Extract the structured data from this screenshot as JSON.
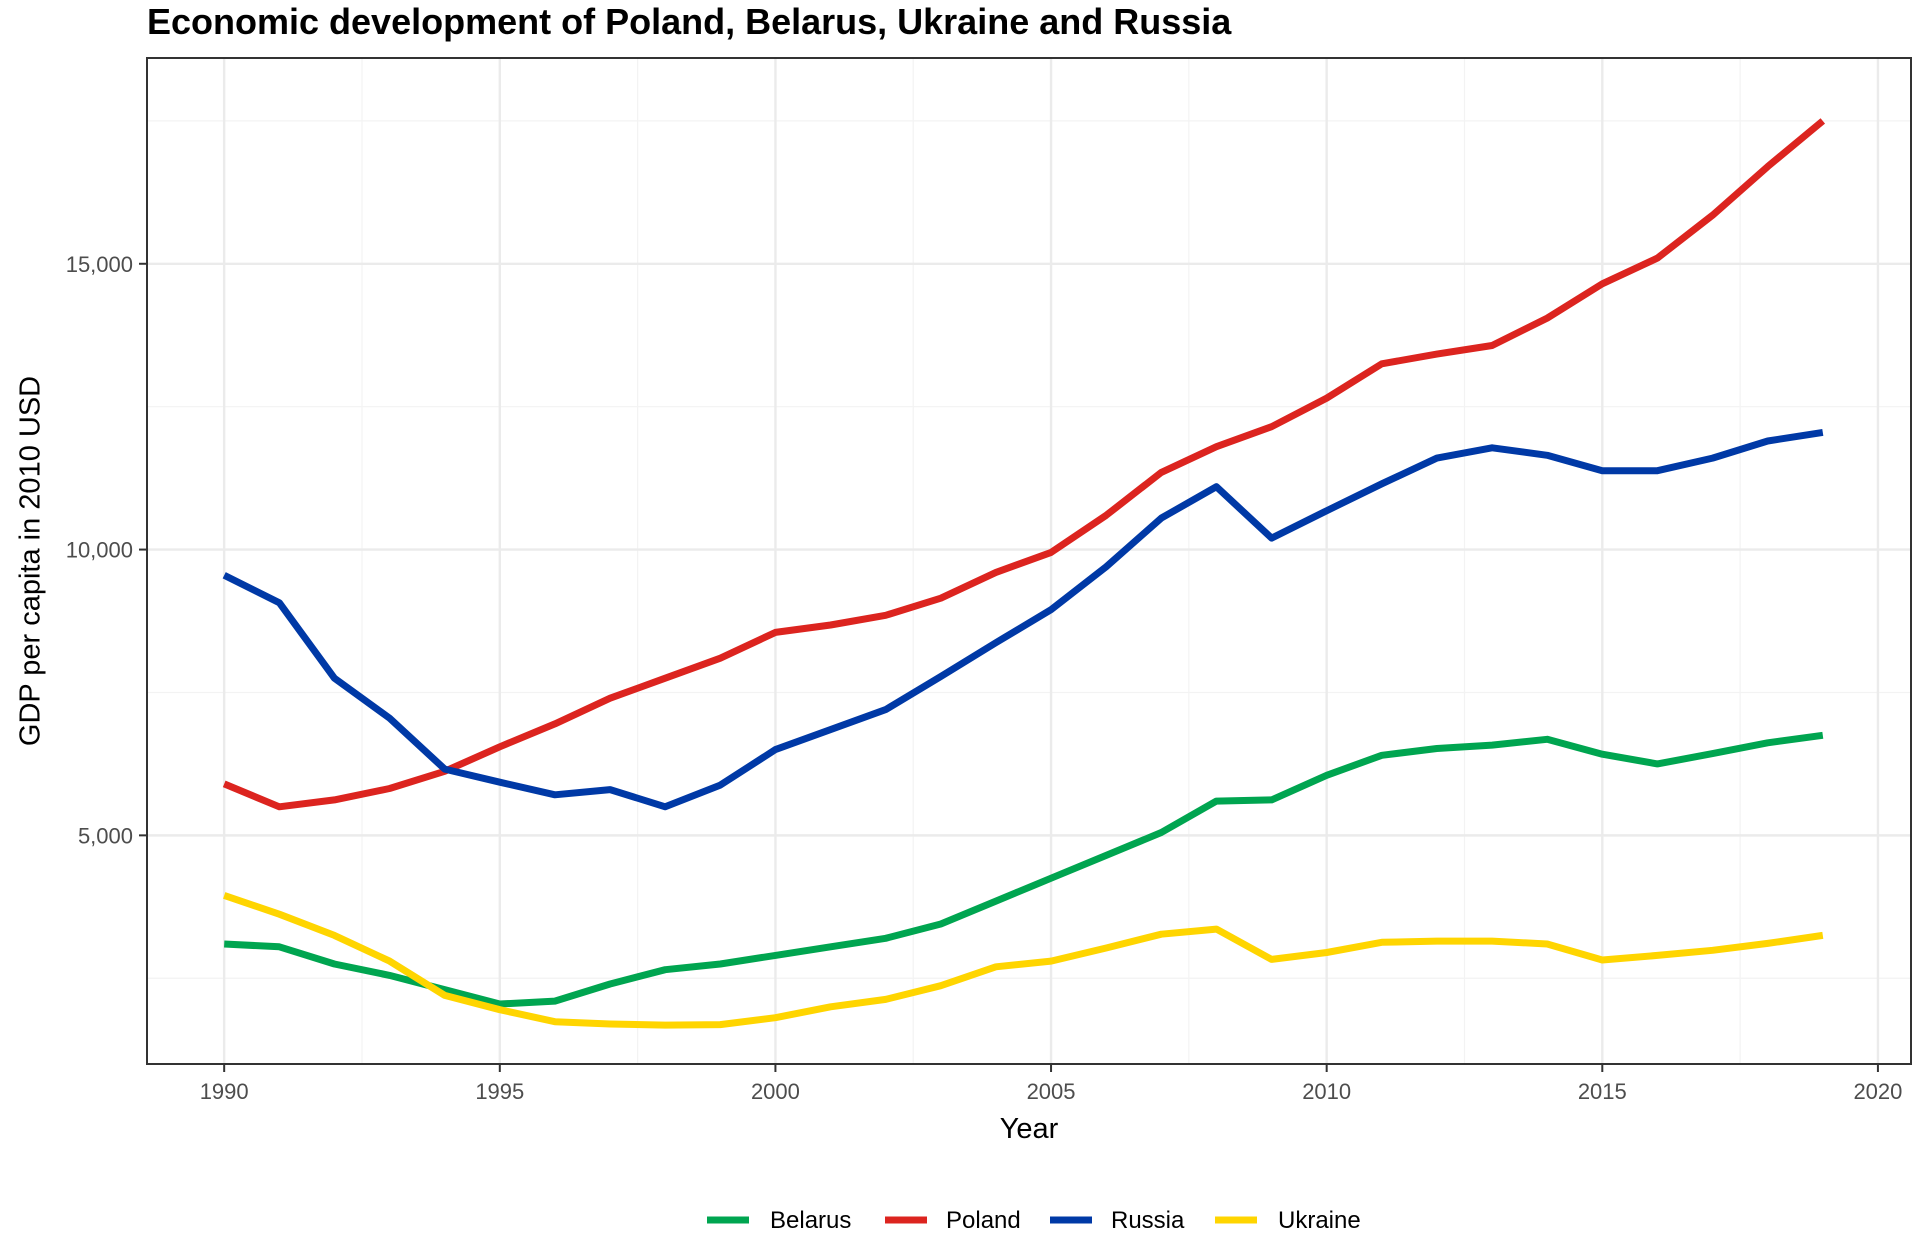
{
  "chart_data": {
    "type": "line",
    "title": "Economic development of Poland, Belarus, Ukraine and Russia",
    "xlabel": "Year",
    "ylabel": "GDP per capita in 2010 USD",
    "xlim": [
      1988.6,
      2020.6
    ],
    "ylim": [
      1000,
      18600
    ],
    "x_ticks": [
      1990,
      1995,
      2000,
      2005,
      2010,
      2015,
      2020
    ],
    "y_ticks": [
      5000,
      10000,
      15000
    ],
    "x_tick_labels": [
      "1990",
      "1995",
      "2000",
      "2005",
      "2010",
      "2015",
      "2020"
    ],
    "y_tick_labels": [
      "5,000",
      "10,000",
      "15,000"
    ],
    "grid": true,
    "legend_position": "bottom",
    "x": [
      1990,
      1991,
      1992,
      1993,
      1994,
      1995,
      1996,
      1997,
      1998,
      1999,
      2000,
      2001,
      2002,
      2003,
      2004,
      2005,
      2006,
      2007,
      2008,
      2009,
      2010,
      2011,
      2012,
      2013,
      2014,
      2015,
      2016,
      2017,
      2018,
      2019
    ],
    "series": [
      {
        "name": "Belarus",
        "color": "#00a550",
        "values": [
          3100,
          3050,
          2750,
          2550,
          2300,
          2050,
          2100,
          2400,
          2650,
          2750,
          2900,
          3050,
          3200,
          3450,
          3850,
          4250,
          4650,
          5050,
          5600,
          5620,
          6050,
          6400,
          6520,
          6580,
          6680,
          6420,
          6250,
          6430,
          6620,
          6750
        ]
      },
      {
        "name": "Poland",
        "color": "#dc241f",
        "values": [
          5900,
          5500,
          5620,
          5820,
          6120,
          6550,
          6950,
          7400,
          7750,
          8100,
          8550,
          8680,
          8850,
          9150,
          9600,
          9950,
          10600,
          11350,
          11800,
          12150,
          12650,
          13250,
          13420,
          13570,
          14050,
          14650,
          15100,
          15850,
          16700,
          17500
        ]
      },
      {
        "name": "Russia",
        "color": "#0039a6",
        "values": [
          9550,
          9070,
          7750,
          7050,
          6160,
          5930,
          5710,
          5800,
          5500,
          5880,
          6500,
          6850,
          7200,
          7780,
          8370,
          8950,
          9700,
          10550,
          11100,
          10200,
          10680,
          11150,
          11600,
          11780,
          11650,
          11380,
          11380,
          11600,
          11900,
          12050
        ]
      },
      {
        "name": "Ukraine",
        "color": "#ffd500",
        "values": [
          3950,
          3620,
          3250,
          2800,
          2200,
          1950,
          1740,
          1700,
          1680,
          1690,
          1810,
          2000,
          2130,
          2370,
          2700,
          2800,
          3030,
          3270,
          3360,
          2830,
          2950,
          3130,
          3150,
          3150,
          3100,
          2820,
          2900,
          2990,
          3110,
          3250
        ]
      }
    ]
  }
}
